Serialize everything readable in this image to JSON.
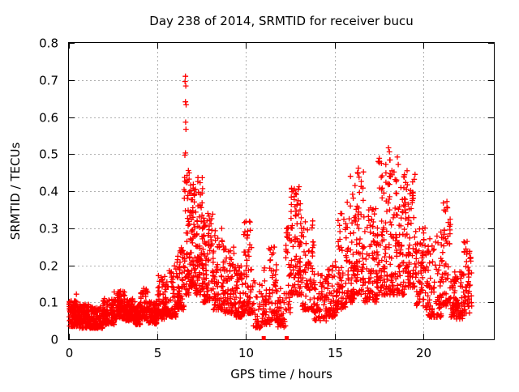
{
  "chart_data": {
    "type": "scatter",
    "title": "Day 238 of 2014, SRMTID for receiver bucu",
    "xlabel": "GPS time / hours",
    "ylabel": "SRMTID / TECUs",
    "xlim": [
      0,
      24
    ],
    "ylim": [
      0,
      0.8
    ],
    "grid": true,
    "legend": "none",
    "marker": "plus",
    "marker_color": "#ff0000",
    "grid_color": "#b0b0b0",
    "border_color": "#000000",
    "text_color": "#000000",
    "xticks": [
      {
        "v": 0,
        "label": "0"
      },
      {
        "v": 5,
        "label": "5"
      },
      {
        "v": 10,
        "label": "10"
      },
      {
        "v": 15,
        "label": "15"
      },
      {
        "v": 20,
        "label": "20"
      }
    ],
    "yticks": [
      {
        "v": 0.0,
        "label": "0"
      },
      {
        "v": 0.1,
        "label": "0.1"
      },
      {
        "v": 0.2,
        "label": "0.2"
      },
      {
        "v": 0.3,
        "label": "0.3"
      },
      {
        "v": 0.4,
        "label": "0.4"
      },
      {
        "v": 0.5,
        "label": "0.5"
      },
      {
        "v": 0.6,
        "label": "0.6"
      },
      {
        "v": 0.7,
        "label": "0.7"
      },
      {
        "v": 0.8,
        "label": "0.8"
      }
    ],
    "density_clusters_comment": "dense noisy scatter ~2900 pts; each cluster: [t_start_h, t_end_h, value_min_TECU, value_max_TECU, n_points, bottom_bias]",
    "clusters": [
      [
        0.0,
        0.6,
        0.035,
        0.105,
        120,
        1.4
      ],
      [
        0.6,
        1.2,
        0.03,
        0.095,
        115,
        1.4
      ],
      [
        1.2,
        1.9,
        0.03,
        0.09,
        115,
        1.4
      ],
      [
        1.9,
        2.55,
        0.04,
        0.11,
        105,
        1.4
      ],
      [
        2.55,
        3.15,
        0.055,
        0.13,
        100,
        1.5
      ],
      [
        3.15,
        3.75,
        0.05,
        0.11,
        95,
        1.4
      ],
      [
        3.75,
        4.05,
        0.04,
        0.1,
        55,
        1.4
      ],
      [
        4.05,
        4.45,
        0.055,
        0.14,
        60,
        1.5
      ],
      [
        4.45,
        5.0,
        0.04,
        0.105,
        85,
        1.4
      ],
      [
        5.0,
        5.5,
        0.055,
        0.17,
        75,
        1.8
      ],
      [
        5.5,
        6.1,
        0.06,
        0.2,
        75,
        1.9
      ],
      [
        6.1,
        6.5,
        0.08,
        0.27,
        65,
        1.8
      ],
      [
        6.5,
        6.8,
        0.12,
        0.46,
        50,
        1.6
      ],
      [
        6.8,
        7.15,
        0.14,
        0.42,
        75,
        1.5
      ],
      [
        7.15,
        7.55,
        0.12,
        0.44,
        75,
        1.6
      ],
      [
        7.55,
        8.15,
        0.1,
        0.34,
        85,
        1.7
      ],
      [
        8.15,
        8.75,
        0.08,
        0.3,
        75,
        1.8
      ],
      [
        8.75,
        9.35,
        0.07,
        0.25,
        70,
        1.7
      ],
      [
        9.35,
        9.8,
        0.06,
        0.21,
        60,
        1.7
      ],
      [
        9.8,
        10.35,
        0.07,
        0.32,
        75,
        1.9
      ],
      [
        10.35,
        10.95,
        0.03,
        0.16,
        45,
        1.5
      ],
      [
        10.95,
        11.35,
        0.04,
        0.2,
        40,
        1.6
      ],
      [
        11.35,
        11.75,
        0.05,
        0.26,
        45,
        1.7
      ],
      [
        11.75,
        12.25,
        0.03,
        0.15,
        40,
        1.5
      ],
      [
        12.25,
        12.55,
        0.07,
        0.33,
        35,
        1.4
      ],
      [
        12.55,
        13.15,
        0.12,
        0.41,
        95,
        1.6
      ],
      [
        13.15,
        13.85,
        0.08,
        0.32,
        75,
        1.7
      ],
      [
        13.85,
        14.55,
        0.05,
        0.18,
        60,
        1.5
      ],
      [
        14.55,
        15.15,
        0.06,
        0.21,
        65,
        1.6
      ],
      [
        15.15,
        15.65,
        0.08,
        0.34,
        60,
        1.9
      ],
      [
        15.65,
        16.1,
        0.1,
        0.41,
        60,
        1.7
      ],
      [
        16.1,
        16.65,
        0.12,
        0.46,
        75,
        1.7
      ],
      [
        16.65,
        17.45,
        0.1,
        0.37,
        95,
        1.7
      ],
      [
        17.45,
        18.25,
        0.12,
        0.5,
        105,
        1.7
      ],
      [
        18.25,
        19.0,
        0.12,
        0.48,
        95,
        1.7
      ],
      [
        19.0,
        19.6,
        0.14,
        0.45,
        70,
        1.6
      ],
      [
        19.6,
        20.15,
        0.09,
        0.31,
        60,
        1.6
      ],
      [
        20.15,
        21.05,
        0.06,
        0.29,
        95,
        1.9
      ],
      [
        21.05,
        21.55,
        0.09,
        0.37,
        55,
        1.8
      ],
      [
        21.55,
        22.3,
        0.055,
        0.185,
        85,
        1.4
      ],
      [
        22.3,
        22.75,
        0.07,
        0.265,
        55,
        1.6
      ]
    ],
    "notable_points": [
      [
        6.58,
        0.71
      ],
      [
        6.56,
        0.696
      ],
      [
        6.6,
        0.684
      ],
      [
        6.58,
        0.641
      ],
      [
        6.62,
        0.633
      ],
      [
        6.59,
        0.586
      ],
      [
        6.61,
        0.567
      ],
      [
        6.58,
        0.503
      ],
      [
        6.55,
        0.497
      ],
      [
        6.53,
        0.437
      ],
      [
        6.66,
        0.43
      ],
      [
        0.42,
        0.122
      ],
      [
        5.05,
        0.172
      ],
      [
        10.0,
        0.318
      ],
      [
        11.3,
        0.245
      ],
      [
        12.95,
        0.405
      ],
      [
        13.0,
        0.412
      ],
      [
        15.9,
        0.44
      ],
      [
        16.3,
        0.45
      ],
      [
        16.35,
        0.462
      ],
      [
        17.9,
        0.472
      ],
      [
        18.05,
        0.517
      ],
      [
        18.1,
        0.506
      ],
      [
        18.12,
        0.484
      ],
      [
        18.55,
        0.492
      ],
      [
        18.6,
        0.472
      ],
      [
        19.1,
        0.455
      ],
      [
        19.5,
        0.432
      ],
      [
        21.35,
        0.372
      ],
      [
        21.38,
        0.355
      ]
    ],
    "zero_value_points": [
      {
        "x": 11.0,
        "y": 0,
        "marker": "filled-square"
      },
      {
        "x": 12.3,
        "y": 0,
        "marker": "filled-square"
      }
    ]
  }
}
